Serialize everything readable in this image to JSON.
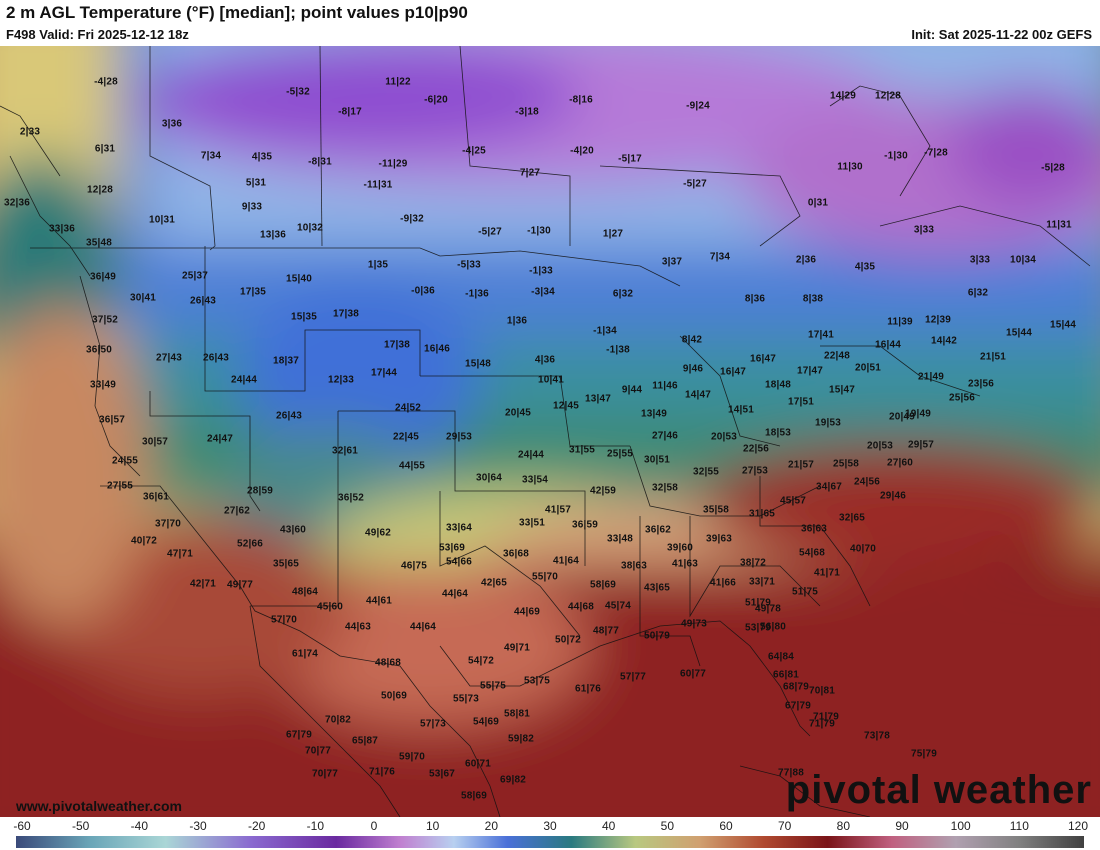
{
  "header": {
    "title": "2 m AGL Temperature (°F) [median]; point values p10|p90",
    "valid": "F498 Valid: Fri 2025-12-12 18z",
    "init": "Init: Sat 2025-11-22 00z GEFS"
  },
  "footer": {
    "website": "www.pivotalweather.com",
    "brand": "pivotal weather"
  },
  "colorbar": {
    "ticks": [
      "-60",
      "-50",
      "-40",
      "-30",
      "-20",
      "-10",
      "0",
      "10",
      "20",
      "30",
      "40",
      "50",
      "60",
      "70",
      "80",
      "90",
      "100",
      "110",
      "120"
    ]
  },
  "points": [
    {
      "label": "-4|28"
    },
    {
      "label": "-5|32"
    },
    {
      "label": "11|22"
    },
    {
      "label": "-6|20"
    },
    {
      "label": "-8|17"
    },
    {
      "label": "-3|18"
    },
    {
      "label": "-8|16"
    },
    {
      "label": "-9|24"
    },
    {
      "label": "14|29"
    },
    {
      "label": "12|28"
    },
    {
      "label": "2|33"
    },
    {
      "label": "3|36"
    },
    {
      "label": "6|31"
    },
    {
      "label": "7|34"
    },
    {
      "label": "4|35"
    },
    {
      "label": "-8|31"
    },
    {
      "label": "-11|29"
    },
    {
      "label": "-4|25"
    },
    {
      "label": "-4|20"
    },
    {
      "label": "-5|17"
    },
    {
      "label": "11|30"
    },
    {
      "label": "-1|30"
    },
    {
      "label": "-7|28"
    },
    {
      "label": "-5|28"
    },
    {
      "label": "12|28"
    },
    {
      "label": "5|31"
    },
    {
      "label": "-11|31"
    },
    {
      "label": "7|27"
    },
    {
      "label": "-5|27"
    },
    {
      "label": "0|31"
    },
    {
      "label": "32|36"
    },
    {
      "label": "9|33"
    },
    {
      "label": "10|31"
    },
    {
      "label": "-9|32"
    },
    {
      "label": "33|36"
    },
    {
      "label": "13|36"
    },
    {
      "label": "10|32"
    },
    {
      "label": "-5|27"
    },
    {
      "label": "-1|30"
    },
    {
      "label": "1|27"
    },
    {
      "label": "3|33"
    },
    {
      "label": "11|31"
    },
    {
      "label": "35|48"
    },
    {
      "label": "1|35"
    },
    {
      "label": "-5|33"
    },
    {
      "label": "2|36"
    },
    {
      "label": "7|34"
    },
    {
      "label": "4|35"
    },
    {
      "label": "3|33"
    },
    {
      "label": "10|34"
    },
    {
      "label": "36|49"
    },
    {
      "label": "25|37"
    },
    {
      "label": "15|40"
    },
    {
      "label": "-1|33"
    },
    {
      "label": "3|37"
    },
    {
      "label": "17|35"
    },
    {
      "label": "-0|36"
    },
    {
      "label": "-1|36"
    },
    {
      "label": "-3|34"
    },
    {
      "label": "6|32"
    },
    {
      "label": "8|36"
    },
    {
      "label": "8|38"
    },
    {
      "label": "6|32"
    },
    {
      "label": "30|41"
    },
    {
      "label": "26|43"
    },
    {
      "label": "15|35"
    },
    {
      "label": "17|38"
    },
    {
      "label": "1|36"
    },
    {
      "label": "-1|34"
    },
    {
      "label": "11|39"
    },
    {
      "label": "12|39"
    },
    {
      "label": "15|44"
    },
    {
      "label": "15|44"
    },
    {
      "label": "37|52"
    },
    {
      "label": "17|41"
    },
    {
      "label": "8|42"
    },
    {
      "label": "14|42"
    },
    {
      "label": "36|50"
    },
    {
      "label": "27|43"
    },
    {
      "label": "26|43"
    },
    {
      "label": "17|38"
    },
    {
      "label": "16|46"
    },
    {
      "label": "-1|38"
    },
    {
      "label": "16|44"
    },
    {
      "label": "21|51"
    },
    {
      "label": "18|37"
    },
    {
      "label": "15|48"
    },
    {
      "label": "4|36"
    },
    {
      "label": "16|47"
    },
    {
      "label": "22|48"
    },
    {
      "label": "24|44"
    },
    {
      "label": "12|33"
    },
    {
      "label": "17|44"
    },
    {
      "label": "10|41"
    },
    {
      "label": "9|46"
    },
    {
      "label": "16|47"
    },
    {
      "label": "17|47"
    },
    {
      "label": "20|51"
    },
    {
      "label": "33|49"
    },
    {
      "label": "18|48"
    },
    {
      "label": "21|49"
    },
    {
      "label": "23|56"
    },
    {
      "label": "9|44"
    },
    {
      "label": "11|46"
    },
    {
      "label": "14|47"
    },
    {
      "label": "15|47"
    },
    {
      "label": "13|47"
    },
    {
      "label": "25|56"
    },
    {
      "label": "36|57"
    },
    {
      "label": "26|43"
    },
    {
      "label": "24|52"
    },
    {
      "label": "20|45"
    },
    {
      "label": "12|45"
    },
    {
      "label": "13|49"
    },
    {
      "label": "14|51"
    },
    {
      "label": "17|51"
    },
    {
      "label": "20|49"
    },
    {
      "label": "19|49"
    },
    {
      "label": "30|57"
    },
    {
      "label": "24|47"
    },
    {
      "label": "22|45"
    },
    {
      "label": "29|53"
    },
    {
      "label": "27|46"
    },
    {
      "label": "20|53"
    },
    {
      "label": "18|53"
    },
    {
      "label": "19|53"
    },
    {
      "label": "20|53"
    },
    {
      "label": "29|57"
    },
    {
      "label": "32|61"
    },
    {
      "label": "24|44"
    },
    {
      "label": "31|55"
    },
    {
      "label": "25|55"
    },
    {
      "label": "22|56"
    },
    {
      "label": "24|55"
    },
    {
      "label": "44|55"
    },
    {
      "label": "30|51"
    },
    {
      "label": "21|57"
    },
    {
      "label": "25|58"
    },
    {
      "label": "27|60"
    },
    {
      "label": "30|64"
    },
    {
      "label": "33|54"
    },
    {
      "label": "32|55"
    },
    {
      "label": "27|53"
    },
    {
      "label": "27|55"
    },
    {
      "label": "42|59"
    },
    {
      "label": "32|58"
    },
    {
      "label": "24|56"
    },
    {
      "label": "34|67"
    },
    {
      "label": "28|59"
    },
    {
      "label": "36|52"
    },
    {
      "label": "29|46"
    },
    {
      "label": "36|61"
    },
    {
      "label": "45|57"
    },
    {
      "label": "27|62"
    },
    {
      "label": "41|57"
    },
    {
      "label": "35|58"
    },
    {
      "label": "31|65"
    },
    {
      "label": "32|65"
    },
    {
      "label": "37|70"
    },
    {
      "label": "43|60"
    },
    {
      "label": "33|51"
    },
    {
      "label": "36|59"
    },
    {
      "label": "36|62"
    },
    {
      "label": "33|64"
    },
    {
      "label": "36|63"
    },
    {
      "label": "40|72"
    },
    {
      "label": "52|66"
    },
    {
      "label": "49|62"
    },
    {
      "label": "33|48"
    },
    {
      "label": "39|63"
    },
    {
      "label": "40|70"
    },
    {
      "label": "47|71"
    },
    {
      "label": "53|69"
    },
    {
      "label": "39|60"
    },
    {
      "label": "36|68"
    },
    {
      "label": "54|68"
    },
    {
      "label": "35|65"
    },
    {
      "label": "46|75"
    },
    {
      "label": "54|66"
    },
    {
      "label": "41|64"
    },
    {
      "label": "38|63"
    },
    {
      "label": "41|63"
    },
    {
      "label": "38|72"
    },
    {
      "label": "41|71"
    },
    {
      "label": "42|71"
    },
    {
      "label": "49|77"
    },
    {
      "label": "55|70"
    },
    {
      "label": "58|69"
    },
    {
      "label": "43|65"
    },
    {
      "label": "41|66"
    },
    {
      "label": "33|71"
    },
    {
      "label": "48|64"
    },
    {
      "label": "42|65"
    },
    {
      "label": "44|64"
    },
    {
      "label": "45|74"
    },
    {
      "label": "49|78"
    },
    {
      "label": "51|75"
    },
    {
      "label": "44|61"
    },
    {
      "label": "45|60"
    },
    {
      "label": "51|79"
    },
    {
      "label": "57|70"
    },
    {
      "label": "44|69"
    },
    {
      "label": "44|68"
    },
    {
      "label": "44|63"
    },
    {
      "label": "44|64"
    },
    {
      "label": "48|77"
    },
    {
      "label": "49|73"
    },
    {
      "label": "53|79"
    },
    {
      "label": "56|80"
    },
    {
      "label": "50|72"
    },
    {
      "label": "50|79"
    },
    {
      "label": "61|74"
    },
    {
      "label": "49|71"
    },
    {
      "label": "54|72"
    },
    {
      "label": "64|84"
    },
    {
      "label": "48|68"
    },
    {
      "label": "53|75"
    },
    {
      "label": "61|76"
    },
    {
      "label": "57|77"
    },
    {
      "label": "60|77"
    },
    {
      "label": "66|81"
    },
    {
      "label": "68|79"
    },
    {
      "label": "55|75"
    },
    {
      "label": "70|81"
    },
    {
      "label": "50|69"
    },
    {
      "label": "55|73"
    },
    {
      "label": "67|79"
    },
    {
      "label": "71|79"
    },
    {
      "label": "70|82"
    },
    {
      "label": "58|81"
    },
    {
      "label": "71|79"
    },
    {
      "label": "57|73"
    },
    {
      "label": "54|69"
    },
    {
      "label": "67|79"
    },
    {
      "label": "65|87"
    },
    {
      "label": "59|82"
    },
    {
      "label": "73|78"
    },
    {
      "label": "70|77"
    },
    {
      "label": "59|70"
    },
    {
      "label": "60|71"
    },
    {
      "label": "75|79"
    },
    {
      "label": "70|77"
    },
    {
      "label": "71|76"
    },
    {
      "label": "53|67"
    },
    {
      "label": "69|82"
    },
    {
      "label": "77|88"
    },
    {
      "label": "58|69"
    }
  ]
}
